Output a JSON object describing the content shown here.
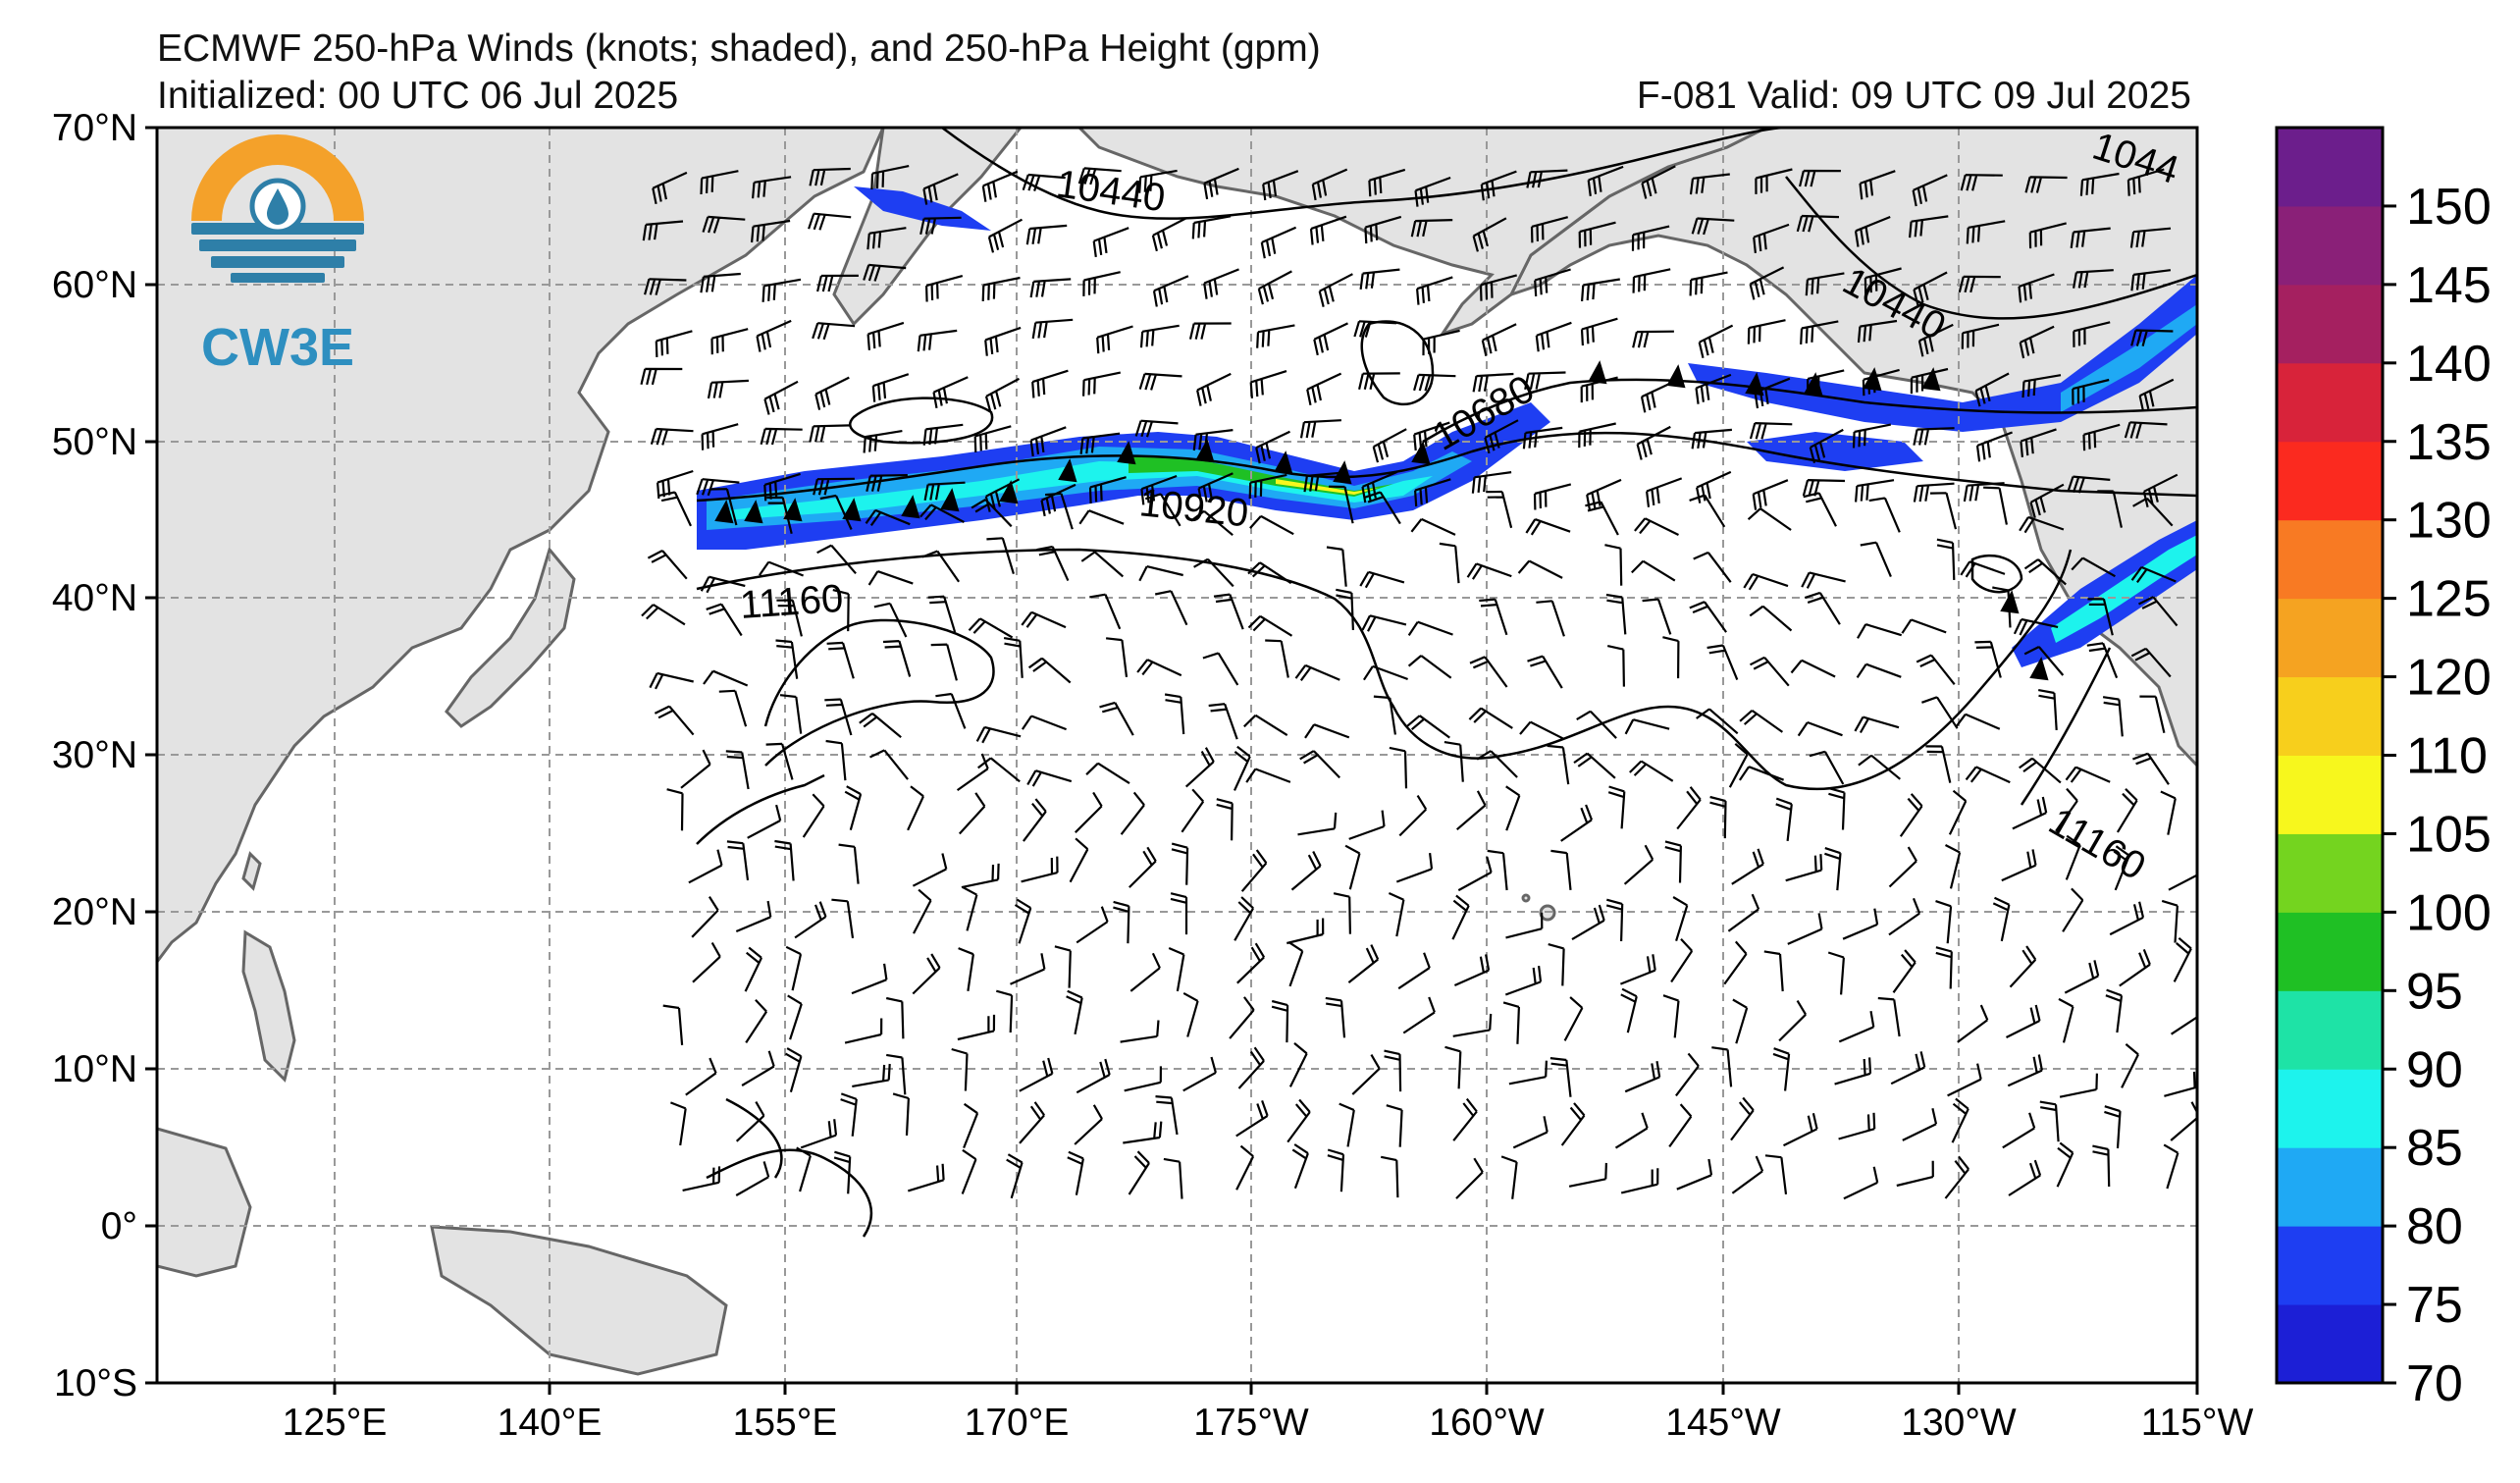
{
  "header": {
    "title": "ECMWF 250-hPa Winds (knots; shaded), and 250-hPa Height (gpm)",
    "init": "Initialized: 00 UTC 06 Jul 2025",
    "valid": "F-081  Valid: 09 UTC 09 Jul 2025"
  },
  "logo": {
    "text": "CW3E"
  },
  "axes": {
    "lat_labels": [
      "70°N",
      "60°N",
      "50°N",
      "40°N",
      "30°N",
      "20°N",
      "10°N",
      "0°",
      "10°S"
    ],
    "lon_labels": [
      "125°E",
      "140°E",
      "155°E",
      "170°E",
      "175°W",
      "160°W",
      "145°W",
      "130°W",
      "115°W"
    ]
  },
  "colorbar": {
    "ticks": [
      "70",
      "75",
      "80",
      "85",
      "90",
      "95",
      "100",
      "105",
      "110",
      "120",
      "125",
      "130",
      "135",
      "140",
      "145",
      "150"
    ],
    "colors": [
      "#1c1fd6",
      "#1e3ef2",
      "#1fa9f4",
      "#1df3ed",
      "#1ee3a6",
      "#1fc024",
      "#74d41f",
      "#f7f71d",
      "#f7cf1c",
      "#f5a321",
      "#f87a23",
      "#fb2a1f",
      "#d8233a",
      "#a52060",
      "#8a2078",
      "#6c1e8c"
    ]
  },
  "contours": {
    "labels": [
      "10440",
      "10440",
      "1044",
      "10680",
      "10920",
      "11160",
      "11160"
    ]
  }
}
